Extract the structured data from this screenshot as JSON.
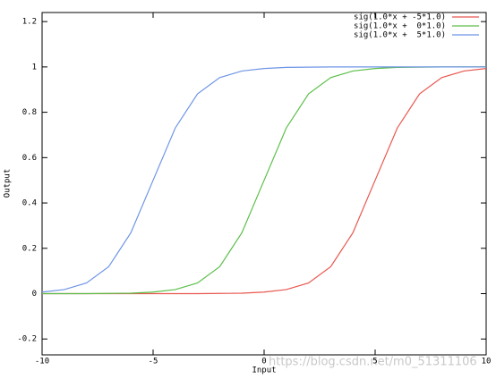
{
  "chart_data": {
    "type": "line",
    "xlabel": "Input",
    "ylabel": "Output",
    "x": [
      -10,
      -9,
      -8,
      -7,
      -6,
      -5,
      -4,
      -3,
      -2,
      -1,
      0,
      1,
      2,
      3,
      4,
      5,
      6,
      7,
      8,
      9,
      10
    ],
    "series": [
      {
        "name": "sig(1.0*x + -5*1.0)",
        "color": "#e8574f",
        "values": [
          0,
          0,
          0,
          0,
          0,
          0,
          0,
          0,
          0.001,
          0.002,
          0.007,
          0.018,
          0.047,
          0.119,
          0.269,
          0.5,
          0.731,
          0.881,
          0.953,
          0.982,
          0.993
        ]
      },
      {
        "name": "sig(1.0*x +  0*1.0)",
        "color": "#5cbf4a",
        "values": [
          0,
          0,
          0,
          0.001,
          0.002,
          0.007,
          0.018,
          0.047,
          0.119,
          0.269,
          0.5,
          0.731,
          0.881,
          0.953,
          0.982,
          0.993,
          0.998,
          0.999,
          1,
          1,
          1
        ]
      },
      {
        "name": "sig(1.0*x +  5*1.0)",
        "color": "#6f95e6",
        "values": [
          0.007,
          0.018,
          0.047,
          0.119,
          0.269,
          0.5,
          0.731,
          0.881,
          0.953,
          0.982,
          0.993,
          0.998,
          0.999,
          1,
          1,
          1,
          1,
          1,
          1,
          1,
          1
        ]
      }
    ],
    "xlim": [
      -10,
      10
    ],
    "xticks": [
      -10,
      -5,
      0,
      5,
      10
    ],
    "ylim": [
      -0.27,
      1.24
    ],
    "yticks": [
      -0.2,
      0,
      0.2,
      0.4,
      0.6,
      0.8,
      1,
      1.2
    ],
    "grid": false,
    "legend": "top-right",
    "watermark": "https://blog.csdn.net/m0_51311106"
  }
}
